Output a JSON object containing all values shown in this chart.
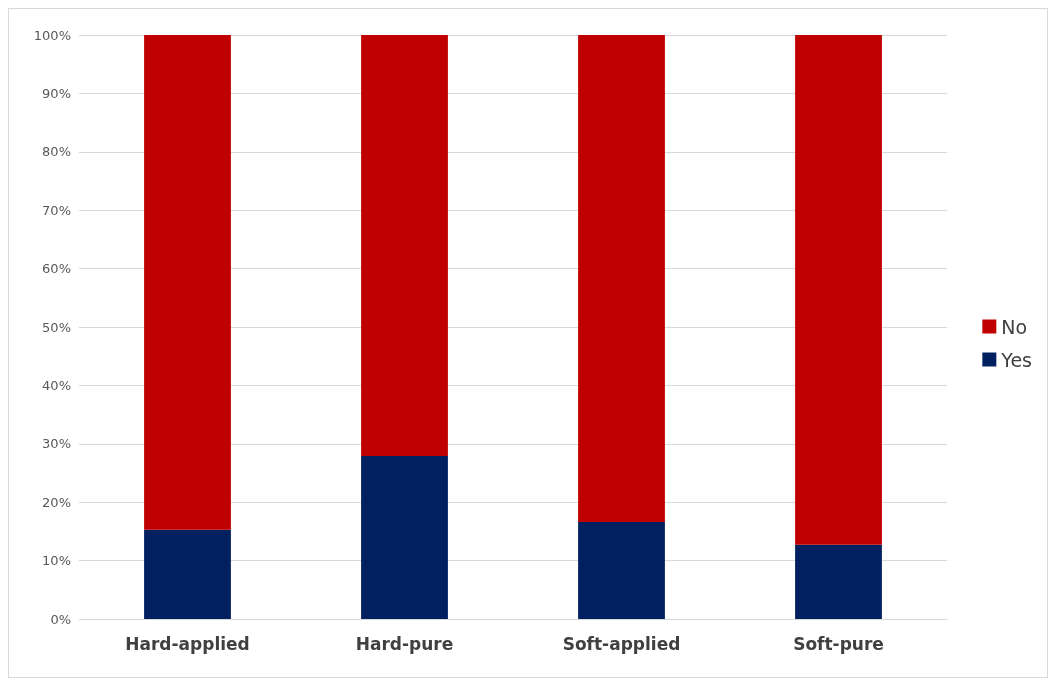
{
  "chart_data": {
    "type": "bar",
    "stacked": true,
    "categories": [
      "Hard-applied",
      "Hard-pure",
      "Soft-applied",
      "Soft-pure"
    ],
    "series": [
      {
        "name": "Yes",
        "color": "#002060",
        "values": [
          15.3,
          27.9,
          16.6,
          12.7
        ]
      },
      {
        "name": "No",
        "color": "#c00000",
        "values": [
          84.7,
          72.1,
          83.4,
          87.3
        ]
      }
    ],
    "ylim": [
      0,
      100
    ],
    "yticks": [
      {
        "value": 0,
        "label": "0%"
      },
      {
        "value": 10,
        "label": "10%"
      },
      {
        "value": 20,
        "label": "20%"
      },
      {
        "value": 30,
        "label": "30%"
      },
      {
        "value": 40,
        "label": "40%"
      },
      {
        "value": 50,
        "label": "50%"
      },
      {
        "value": 60,
        "label": "60%"
      },
      {
        "value": 70,
        "label": "70%"
      },
      {
        "value": 80,
        "label": "80%"
      },
      {
        "value": 90,
        "label": "90%"
      },
      {
        "value": 100,
        "label": "100%"
      }
    ],
    "grid": "y",
    "legend": "right"
  }
}
